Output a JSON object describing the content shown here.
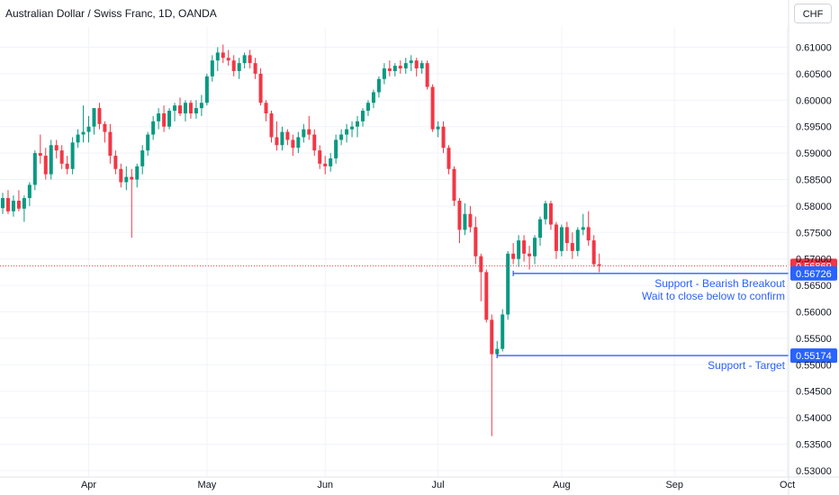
{
  "header": {
    "title": "Australian Dollar / Swiss Franc, 1D, OANDA",
    "currency": "CHF"
  },
  "chart_data": {
    "type": "candlestick",
    "symbol": "AUDCHF",
    "interval": "1D",
    "source": "OANDA",
    "y_ticks": [
      "0.61000",
      "0.60500",
      "0.60000",
      "0.59500",
      "0.59000",
      "0.58500",
      "0.58000",
      "0.57500",
      "0.57000",
      "0.56500",
      "0.56000",
      "0.55500",
      "0.55000",
      "0.54500",
      "0.54000",
      "0.53500",
      "0.53000"
    ],
    "y_range": [
      0.5285,
      0.6137
    ],
    "x_ticks": [
      "Apr",
      "May",
      "Jun",
      "Jul",
      "Aug",
      "Sep",
      "Oct"
    ],
    "x_tick_index": [
      16,
      38,
      60,
      81,
      104,
      125,
      146
    ],
    "up_color": "#089981",
    "down_color": "#f23645",
    "last_price": "0.56869",
    "last_price_value": 0.56869,
    "candles": [
      [
        0.5796,
        0.5825,
        0.5785,
        0.5815
      ],
      [
        0.5815,
        0.583,
        0.5785,
        0.579
      ],
      [
        0.579,
        0.582,
        0.578,
        0.581
      ],
      [
        0.581,
        0.583,
        0.579,
        0.5795
      ],
      [
        0.5795,
        0.582,
        0.577,
        0.5815
      ],
      [
        0.5815,
        0.5845,
        0.58,
        0.584
      ],
      [
        0.584,
        0.5905,
        0.583,
        0.59
      ],
      [
        0.59,
        0.5935,
        0.588,
        0.5895
      ],
      [
        0.5895,
        0.591,
        0.585,
        0.586
      ],
      [
        0.586,
        0.5925,
        0.585,
        0.5915
      ],
      [
        0.5915,
        0.5925,
        0.589,
        0.5905
      ],
      [
        0.5905,
        0.5915,
        0.587,
        0.588
      ],
      [
        0.588,
        0.5895,
        0.586,
        0.587
      ],
      [
        0.587,
        0.593,
        0.586,
        0.592
      ],
      [
        0.592,
        0.5945,
        0.591,
        0.5935
      ],
      [
        0.5935,
        0.599,
        0.592,
        0.594
      ],
      [
        0.594,
        0.597,
        0.592,
        0.595
      ],
      [
        0.595,
        0.5985,
        0.5935,
        0.5985
      ],
      [
        0.5985,
        0.5995,
        0.5945,
        0.5955
      ],
      [
        0.5955,
        0.596,
        0.592,
        0.594
      ],
      [
        0.594,
        0.5955,
        0.588,
        0.5895
      ],
      [
        0.5895,
        0.5905,
        0.586,
        0.587
      ],
      [
        0.587,
        0.588,
        0.5835,
        0.5845
      ],
      [
        0.5845,
        0.5875,
        0.583,
        0.5855
      ],
      [
        0.5855,
        0.587,
        0.574,
        0.585
      ],
      [
        0.585,
        0.588,
        0.5835,
        0.5875
      ],
      [
        0.5875,
        0.5915,
        0.586,
        0.5905
      ],
      [
        0.5905,
        0.594,
        0.5895,
        0.5935
      ],
      [
        0.5935,
        0.597,
        0.5925,
        0.596
      ],
      [
        0.596,
        0.5985,
        0.5945,
        0.5975
      ],
      [
        0.5975,
        0.599,
        0.594,
        0.595
      ],
      [
        0.595,
        0.5985,
        0.5945,
        0.598
      ],
      [
        0.598,
        0.5995,
        0.596,
        0.599
      ],
      [
        0.599,
        0.6005,
        0.597,
        0.5975
      ],
      [
        0.5975,
        0.6,
        0.596,
        0.5995
      ],
      [
        0.5995,
        0.6,
        0.5965,
        0.5975
      ],
      [
        0.5975,
        0.6,
        0.5965,
        0.5985
      ],
      [
        0.5985,
        0.601,
        0.597,
        0.5995
      ],
      [
        0.5995,
        0.605,
        0.599,
        0.6045
      ],
      [
        0.6045,
        0.6085,
        0.6035,
        0.6075
      ],
      [
        0.6075,
        0.61,
        0.6055,
        0.609
      ],
      [
        0.609,
        0.6105,
        0.607,
        0.608
      ],
      [
        0.608,
        0.6095,
        0.6065,
        0.6075
      ],
      [
        0.6075,
        0.6085,
        0.6045,
        0.6055
      ],
      [
        0.6055,
        0.608,
        0.604,
        0.607
      ],
      [
        0.607,
        0.609,
        0.606,
        0.6085
      ],
      [
        0.6085,
        0.6095,
        0.606,
        0.607
      ],
      [
        0.607,
        0.608,
        0.604,
        0.605
      ],
      [
        0.605,
        0.606,
        0.599,
        0.5995
      ],
      [
        0.5995,
        0.6,
        0.596,
        0.5975
      ],
      [
        0.5975,
        0.598,
        0.592,
        0.593
      ],
      [
        0.593,
        0.596,
        0.5905,
        0.5915
      ],
      [
        0.5915,
        0.595,
        0.5905,
        0.594
      ],
      [
        0.594,
        0.5945,
        0.5915,
        0.5925
      ],
      [
        0.5925,
        0.5935,
        0.5895,
        0.591
      ],
      [
        0.591,
        0.594,
        0.59,
        0.593
      ],
      [
        0.593,
        0.5955,
        0.592,
        0.5945
      ],
      [
        0.5945,
        0.597,
        0.5925,
        0.5935
      ],
      [
        0.5935,
        0.5945,
        0.5895,
        0.5905
      ],
      [
        0.5905,
        0.5915,
        0.587,
        0.588
      ],
      [
        0.588,
        0.5895,
        0.586,
        0.5875
      ],
      [
        0.5875,
        0.59,
        0.5865,
        0.589
      ],
      [
        0.589,
        0.5935,
        0.588,
        0.5925
      ],
      [
        0.5925,
        0.5945,
        0.5915,
        0.5935
      ],
      [
        0.5935,
        0.5955,
        0.592,
        0.5945
      ],
      [
        0.5945,
        0.596,
        0.593,
        0.595
      ],
      [
        0.595,
        0.597,
        0.593,
        0.596
      ],
      [
        0.596,
        0.5985,
        0.595,
        0.598
      ],
      [
        0.598,
        0.6,
        0.597,
        0.5995
      ],
      [
        0.5995,
        0.602,
        0.5985,
        0.6015
      ],
      [
        0.6015,
        0.6045,
        0.6005,
        0.604
      ],
      [
        0.604,
        0.607,
        0.603,
        0.606
      ],
      [
        0.606,
        0.6075,
        0.6045,
        0.6055
      ],
      [
        0.6055,
        0.607,
        0.6045,
        0.6065
      ],
      [
        0.6065,
        0.6075,
        0.605,
        0.606
      ],
      [
        0.606,
        0.608,
        0.605,
        0.607
      ],
      [
        0.607,
        0.6085,
        0.6055,
        0.6075
      ],
      [
        0.6075,
        0.608,
        0.6045,
        0.606
      ],
      [
        0.606,
        0.6075,
        0.605,
        0.607
      ],
      [
        0.607,
        0.6075,
        0.602,
        0.6025
      ],
      [
        0.6025,
        0.603,
        0.594,
        0.5945
      ],
      [
        0.5945,
        0.596,
        0.593,
        0.595
      ],
      [
        0.595,
        0.596,
        0.59,
        0.591
      ],
      [
        0.591,
        0.5915,
        0.586,
        0.587
      ],
      [
        0.587,
        0.5875,
        0.58,
        0.581
      ],
      [
        0.581,
        0.5815,
        0.573,
        0.5755
      ],
      [
        0.5755,
        0.5805,
        0.5745,
        0.5785
      ],
      [
        0.5785,
        0.58,
        0.575,
        0.576
      ],
      [
        0.576,
        0.578,
        0.569,
        0.5705
      ],
      [
        0.5705,
        0.571,
        0.562,
        0.5675
      ],
      [
        0.5675,
        0.568,
        0.558,
        0.5585
      ],
      [
        0.5585,
        0.5595,
        0.5365,
        0.552
      ],
      [
        0.552,
        0.5545,
        0.5515,
        0.553
      ],
      [
        0.553,
        0.5605,
        0.5525,
        0.5595
      ],
      [
        0.5595,
        0.5715,
        0.5585,
        0.571
      ],
      [
        0.571,
        0.573,
        0.569,
        0.57
      ],
      [
        0.57,
        0.5745,
        0.5685,
        0.5735
      ],
      [
        0.5735,
        0.5745,
        0.5695,
        0.571
      ],
      [
        0.571,
        0.5725,
        0.568,
        0.5705
      ],
      [
        0.5705,
        0.5745,
        0.569,
        0.574
      ],
      [
        0.574,
        0.578,
        0.5725,
        0.5775
      ],
      [
        0.5775,
        0.581,
        0.5765,
        0.5805
      ],
      [
        0.5805,
        0.581,
        0.5755,
        0.5765
      ],
      [
        0.5765,
        0.577,
        0.57,
        0.5715
      ],
      [
        0.5715,
        0.5765,
        0.5705,
        0.576
      ],
      [
        0.576,
        0.577,
        0.5715,
        0.573
      ],
      [
        0.573,
        0.575,
        0.57,
        0.5715
      ],
      [
        0.5715,
        0.576,
        0.5705,
        0.5755
      ],
      [
        0.5755,
        0.5785,
        0.5745,
        0.576
      ],
      [
        0.576,
        0.579,
        0.5725,
        0.5735
      ],
      [
        0.5735,
        0.5745,
        0.5685,
        0.569
      ],
      [
        0.569,
        0.571,
        0.5675,
        0.5687
      ]
    ],
    "annotations": [
      {
        "price": 0.56726,
        "price_label": "0.56726",
        "start_index": 95,
        "color": "#2962ff",
        "label_lines": [
          "Support - Bearish Breakout",
          "Wait to close below to confirm"
        ]
      },
      {
        "price": 0.55174,
        "price_label": "0.55174",
        "start_index": 92,
        "color": "#2962ff",
        "label_lines": [
          "Support - Target"
        ]
      }
    ]
  }
}
